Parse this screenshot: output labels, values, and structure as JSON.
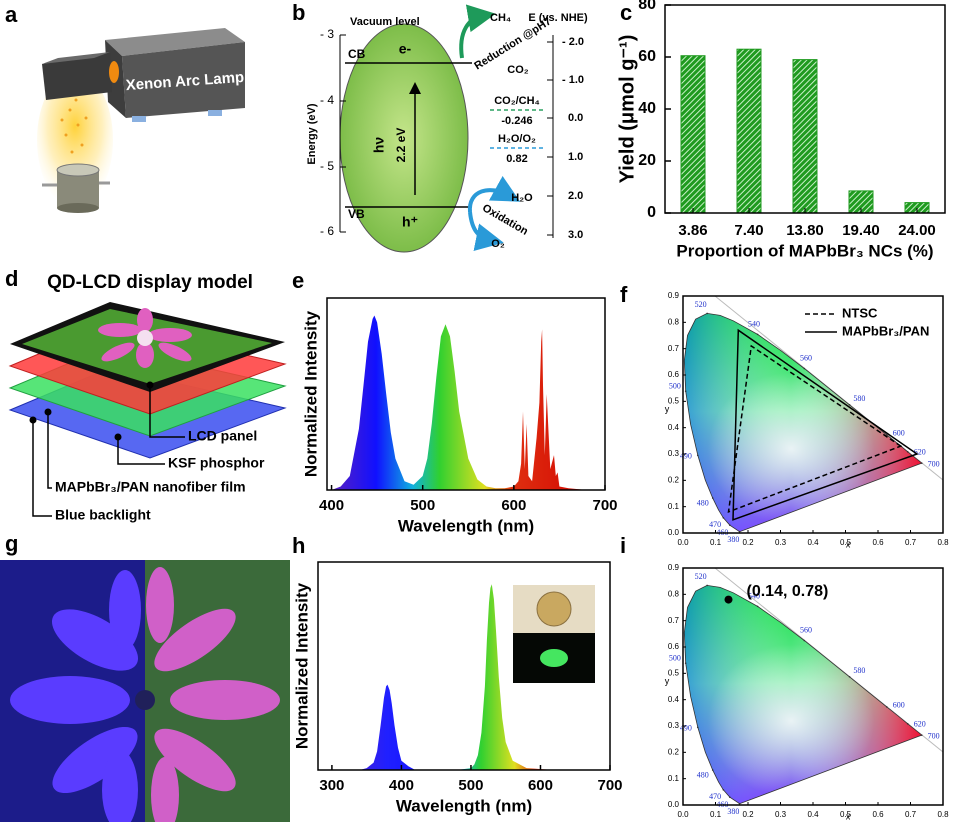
{
  "panel_labels": [
    "a",
    "b",
    "c",
    "d",
    "e",
    "f",
    "g",
    "h",
    "i"
  ],
  "panel_a": {
    "lamp": "Xenon Arc Lamp"
  },
  "panel_b": {
    "vacuum_level": "Vacuum level",
    "left_axis": {
      "label": "Energy (eV)",
      "ticks": [
        "- 3",
        "- 4",
        "- 5",
        "- 6"
      ]
    },
    "right_axis": {
      "label": "E (vs. NHE)",
      "ticks": [
        "- 2.0",
        "- 1.0",
        "0.0",
        "1.0",
        "2.0",
        "3.0"
      ]
    },
    "cb": "CB",
    "vb": "VB",
    "electron": "e-",
    "hole": "h⁺",
    "photon": "hν",
    "band_gap": "2.2 eV",
    "reduction": "Reduction @pH7",
    "ch4": "CH₄",
    "co2": "CO₂",
    "co2_ch4": "CO₂/CH₄",
    "co2_ch4_potential": "-0.246",
    "h2o_o2": "H₂O/O₂",
    "h2o_o2_potential": "0.82",
    "oxidation": "Oxidation",
    "h2o": "H₂O",
    "o2": "O₂"
  },
  "panel_d": {
    "title": "QD-LCD display model",
    "layers": [
      "LCD panel",
      "KSF phosphor",
      "MAPbBr₃/PAN nanofiber film",
      "Blue backlight"
    ]
  },
  "chart_data": [
    {
      "type": "bar",
      "categories": [
        "3.86",
        "7.40",
        "13.80",
        "19.40",
        "24.00"
      ],
      "values": [
        60.5,
        63,
        59,
        8.5,
        4
      ],
      "color": "#1f9a1f",
      "ylim": [
        0,
        80
      ],
      "yticks": [
        0,
        20,
        40,
        60,
        80
      ],
      "xlabel": "Proportion of MAPbBr₃ NCs (%)",
      "ylabel": "Yield (μmol g⁻¹)"
    },
    {
      "type": "line",
      "x": [
        400,
        410,
        420,
        430,
        435,
        440,
        445,
        447,
        450,
        455,
        460,
        465,
        470,
        480,
        490,
        500,
        505,
        510,
        515,
        520,
        525,
        530,
        535,
        540,
        550,
        560,
        570,
        580,
        590,
        600,
        605,
        608,
        610,
        612,
        614,
        616,
        620,
        625,
        628,
        630,
        631,
        632,
        634,
        636,
        640,
        644,
        646,
        648,
        650,
        660,
        680,
        700
      ],
      "values": [
        0,
        0.02,
        0.08,
        0.35,
        0.6,
        0.85,
        0.98,
        1.0,
        0.96,
        0.78,
        0.55,
        0.33,
        0.18,
        0.05,
        0.03,
        0.08,
        0.18,
        0.38,
        0.65,
        0.88,
        0.95,
        0.88,
        0.68,
        0.45,
        0.18,
        0.06,
        0.02,
        0.01,
        0.01,
        0.02,
        0.05,
        0.15,
        0.45,
        0.12,
        0.38,
        0.08,
        0.05,
        0.3,
        0.5,
        0.85,
        0.92,
        0.6,
        0.2,
        0.55,
        0.12,
        0.2,
        0.08,
        0.1,
        0.02,
        0.01,
        0,
        0
      ],
      "xlim": [
        395,
        700
      ],
      "ylim": [
        0,
        1.1
      ],
      "xticks": [
        400,
        500,
        600,
        700
      ],
      "xlabel": "Wavelength (nm)",
      "ylabel": "Normalized Intensity"
    },
    {
      "type": "cie",
      "xlim": [
        0,
        0.8
      ],
      "ylim": [
        0,
        0.9
      ],
      "xticks": [
        {
          "value": 0,
          "label": "0.0"
        },
        0.1,
        0.2,
        0.3,
        0.4,
        0.5,
        0.6,
        0.7,
        0.8
      ],
      "yticks": [
        {
          "value": 0,
          "label": "0.0"
        },
        0.1,
        0.2,
        0.3,
        0.4,
        0.5,
        0.6,
        0.7,
        0.8,
        0.9
      ],
      "xlabel": "x",
      "ylabel": "y",
      "locus_x": [
        0.1741,
        0.144,
        0.1241,
        0.1096,
        0.0913,
        0.0687,
        0.0454,
        0.0235,
        0.0082,
        0.0039,
        0.0139,
        0.0389,
        0.0743,
        0.1142,
        0.1547,
        0.2296,
        0.3016,
        0.3731,
        0.4441,
        0.5125,
        0.5752,
        0.627,
        0.6658,
        0.6915,
        0.719,
        0.7347
      ],
      "locus_y": [
        0.005,
        0.0297,
        0.0578,
        0.0868,
        0.1327,
        0.2007,
        0.295,
        0.4127,
        0.5384,
        0.6548,
        0.7502,
        0.812,
        0.8338,
        0.8262,
        0.8059,
        0.7543,
        0.6923,
        0.6245,
        0.5547,
        0.4866,
        0.4242,
        0.3725,
        0.334,
        0.3083,
        0.2809,
        0.2653
      ],
      "locus_labels": [
        {
          "label": "380",
          "x": 0.1741,
          "y": 0.005
        },
        {
          "label": "460",
          "x": 0.144,
          "y": 0.0297
        },
        {
          "label": "470",
          "x": 0.1241,
          "y": 0.0578
        },
        {
          "label": "480",
          "x": 0.0913,
          "y": 0.1327
        },
        {
          "label": "490",
          "x": 0.0454,
          "y": 0.295
        },
        {
          "label": "500",
          "x": 0.0082,
          "y": 0.5384
        },
        {
          "label": "520",
          "x": 0.0743,
          "y": 0.8338
        },
        {
          "label": "540",
          "x": 0.2296,
          "y": 0.7543
        },
        {
          "label": "560",
          "x": 0.3731,
          "y": 0.6245
        },
        {
          "label": "580",
          "x": 0.5125,
          "y": 0.4866
        },
        {
          "label": "600",
          "x": 0.627,
          "y": 0.3725
        },
        {
          "label": "620",
          "x": 0.6915,
          "y": 0.3083
        },
        {
          "label": "700",
          "x": 0.7347,
          "y": 0.2653
        }
      ],
      "series": [
        {
          "name": "NTSC",
          "color": "#000000",
          "dash": true,
          "x": [
            0.67,
            0.21,
            0.14
          ],
          "y": [
            0.33,
            0.71,
            0.08
          ]
        },
        {
          "name": "MAPbBr₃/PAN",
          "color": "#000000",
          "dash": false,
          "x": [
            0.72,
            0.17,
            0.154
          ],
          "y": [
            0.3,
            0.77,
            0.05
          ]
        }
      ],
      "legend": "upper right"
    },
    {
      "type": "line",
      "x": [
        300,
        340,
        350,
        360,
        365,
        370,
        375,
        378,
        380,
        383,
        386,
        390,
        395,
        400,
        410,
        420,
        450,
        480,
        500,
        505,
        510,
        515,
        520,
        523,
        526,
        528,
        530,
        533,
        536,
        540,
        545,
        550,
        560,
        580,
        620,
        700
      ],
      "values": [
        0,
        0,
        0.01,
        0.04,
        0.1,
        0.24,
        0.39,
        0.45,
        0.46,
        0.43,
        0.36,
        0.24,
        0.12,
        0.05,
        0.02,
        0,
        0,
        0,
        0.01,
        0.03,
        0.08,
        0.2,
        0.45,
        0.7,
        0.9,
        0.98,
        1.0,
        0.92,
        0.75,
        0.5,
        0.28,
        0.15,
        0.05,
        0.01,
        0,
        0
      ],
      "xlim": [
        280,
        700
      ],
      "ylim": [
        0,
        1.12
      ],
      "xticks": [
        300,
        400,
        500,
        600,
        700
      ],
      "xlabel": "Wavelength (nm)",
      "ylabel": "Normalized Intensity"
    },
    {
      "type": "cie",
      "xlim": [
        0,
        0.8
      ],
      "ylim": [
        0,
        0.9
      ],
      "xticks": [
        {
          "value": 0,
          "label": "0.0"
        },
        0.1,
        0.2,
        0.3,
        0.4,
        0.5,
        0.6,
        0.7,
        0.8
      ],
      "yticks": [
        {
          "value": 0,
          "label": "0.0"
        },
        0.1,
        0.2,
        0.3,
        0.4,
        0.5,
        0.6,
        0.7,
        0.8,
        0.9
      ],
      "xlabel": "x",
      "ylabel": "y",
      "locus_x": [
        0.1741,
        0.144,
        0.1241,
        0.1096,
        0.0913,
        0.0687,
        0.0454,
        0.0235,
        0.0082,
        0.0039,
        0.0139,
        0.0389,
        0.0743,
        0.1142,
        0.1547,
        0.2296,
        0.3016,
        0.3731,
        0.4441,
        0.5125,
        0.5752,
        0.627,
        0.6658,
        0.6915,
        0.719,
        0.7347
      ],
      "locus_y": [
        0.005,
        0.0297,
        0.0578,
        0.0868,
        0.1327,
        0.2007,
        0.295,
        0.4127,
        0.5384,
        0.6548,
        0.7502,
        0.812,
        0.8338,
        0.8262,
        0.8059,
        0.7543,
        0.6923,
        0.6245,
        0.5547,
        0.4866,
        0.4242,
        0.3725,
        0.334,
        0.3083,
        0.2809,
        0.2653
      ],
      "locus_labels": [
        {
          "label": "380",
          "x": 0.1741,
          "y": 0.005
        },
        {
          "label": "460",
          "x": 0.144,
          "y": 0.0297
        },
        {
          "label": "470",
          "x": 0.1241,
          "y": 0.0578
        },
        {
          "label": "480",
          "x": 0.0913,
          "y": 0.1327
        },
        {
          "label": "490",
          "x": 0.0454,
          "y": 0.295
        },
        {
          "label": "500",
          "x": 0.0082,
          "y": 0.5384
        },
        {
          "label": "520",
          "x": 0.0743,
          "y": 0.8338
        },
        {
          "label": "540",
          "x": 0.2296,
          "y": 0.7543
        },
        {
          "label": "560",
          "x": 0.3731,
          "y": 0.6245
        },
        {
          "label": "580",
          "x": 0.5125,
          "y": 0.4866
        },
        {
          "label": "600",
          "x": 0.627,
          "y": 0.3725
        },
        {
          "label": "620",
          "x": 0.6915,
          "y": 0.3083
        },
        {
          "label": "700",
          "x": 0.7347,
          "y": 0.2653
        }
      ],
      "series": [
        {
          "color": "#000000",
          "x": [
            0.14
          ],
          "y": [
            0.78
          ]
        }
      ],
      "annotation": "(0.14, 0.78)"
    }
  ]
}
